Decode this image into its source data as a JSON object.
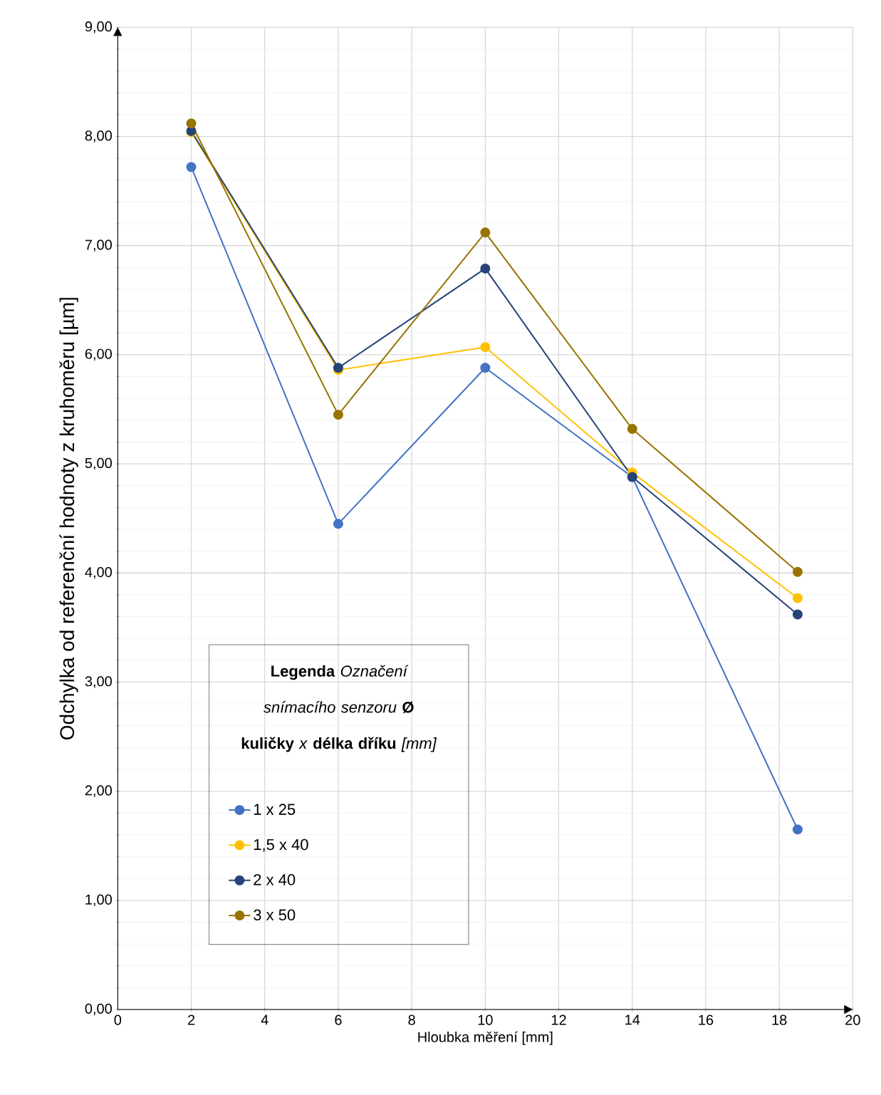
{
  "chart_data": {
    "type": "line",
    "xlabel": "Hloubka měření [mm]",
    "ylabel": "Odchylka od referenční hodnoty z kruhoměru [µm]",
    "legend_title": "**Legenda** *Označení snímacího senzoru* **Ø kuličky** *x* **délka dříku** *[mm]*",
    "x": [
      2,
      6,
      10,
      14,
      18.5
    ],
    "series": [
      {
        "name": "1 x 25",
        "color": "#4472c4",
        "values": [
          7.72,
          4.45,
          5.88,
          4.88,
          1.65
        ]
      },
      {
        "name": "1,5 x 40",
        "color": "#ffc000",
        "values": [
          8.04,
          5.86,
          6.07,
          4.92,
          3.77
        ]
      },
      {
        "name": "2 x 40",
        "color": "#264478",
        "values": [
          8.05,
          5.88,
          6.79,
          4.88,
          3.62
        ]
      },
      {
        "name": "3 x 50",
        "color": "#997300",
        "values": [
          8.12,
          5.45,
          7.12,
          5.32,
          4.01
        ]
      }
    ],
    "xlim": [
      0,
      20
    ],
    "xticks": [
      0,
      2,
      4,
      6,
      8,
      10,
      12,
      14,
      16,
      18,
      20
    ],
    "ylim": [
      0,
      9
    ],
    "yticks": [
      {
        "value": 0,
        "label": "0,00"
      },
      {
        "value": 1,
        "label": "1,00"
      },
      {
        "value": 2,
        "label": "2,00"
      },
      {
        "value": 3,
        "label": "3,00"
      },
      {
        "value": 4,
        "label": "4,00"
      },
      {
        "value": 5,
        "label": "5,00"
      },
      {
        "value": 6,
        "label": "6,00"
      },
      {
        "value": 7,
        "label": "7,00"
      },
      {
        "value": 8,
        "label": "8,00"
      },
      {
        "value": 9,
        "label": "9,00"
      }
    ],
    "grid": true,
    "legend": "bottom left",
    "marker": "circle",
    "line_style": "solid"
  }
}
